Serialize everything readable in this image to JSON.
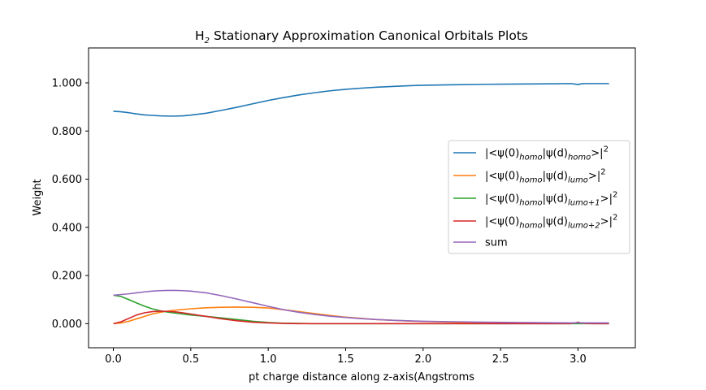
{
  "chart_data": {
    "type": "line",
    "title": {
      "prefix": "H",
      "sub": "2",
      "rest": " Stationary Approximation Canonical Orbitals Plots"
    },
    "xlabel": "pt charge distance along z-axis(Angstroms",
    "ylabel": "Weight",
    "xlim": [
      -0.16,
      3.37
    ],
    "ylim": [
      -0.1,
      1.145
    ],
    "x_ticks": [
      0.0,
      0.5,
      1.0,
      1.5,
      2.0,
      2.5,
      3.0
    ],
    "x_tick_labels": [
      "0.0",
      "0.5",
      "1.0",
      "1.5",
      "2.0",
      "2.5",
      "3.0"
    ],
    "y_ticks": [
      0.0,
      0.2,
      0.4,
      0.6,
      0.8,
      1.0
    ],
    "y_tick_labels": [
      "0.000",
      "0.200",
      "0.400",
      "0.600",
      "0.800",
      "1.000"
    ],
    "grid": false,
    "legend_position": "center-right",
    "x": [
      0.0,
      0.05,
      0.1,
      0.15,
      0.2,
      0.25,
      0.3,
      0.35,
      0.4,
      0.45,
      0.5,
      0.6,
      0.7,
      0.8,
      0.9,
      1.0,
      1.1,
      1.2,
      1.3,
      1.4,
      1.5,
      1.6,
      1.7,
      1.8,
      1.9,
      2.0,
      2.2,
      2.4,
      2.6,
      2.8,
      2.95,
      2.98,
      3.0,
      3.02,
      3.05,
      3.1,
      3.2
    ],
    "series": [
      {
        "legend": {
          "psi0": "|<ψ(0)",
          "sub1": "homo",
          "mid": "|ψ(d)",
          "sub2": "homo",
          "end": ">|",
          "sup": "2"
        },
        "color": "#1f77b4",
        "values": [
          0.882,
          0.88,
          0.876,
          0.871,
          0.867,
          0.865,
          0.863,
          0.862,
          0.862,
          0.863,
          0.866,
          0.874,
          0.886,
          0.899,
          0.913,
          0.927,
          0.939,
          0.95,
          0.959,
          0.967,
          0.973,
          0.978,
          0.982,
          0.985,
          0.988,
          0.99,
          0.992,
          0.994,
          0.995,
          0.996,
          0.997,
          0.995,
          0.993,
          0.996,
          0.997,
          0.997,
          0.997
        ]
      },
      {
        "legend": {
          "psi0": "|<ψ(0)",
          "sub1": "homo",
          "mid": "|ψ(d)",
          "sub2": "lumo",
          "end": ">|",
          "sup": "2"
        },
        "color": "#ff7f0e",
        "values": [
          0.0,
          0.003,
          0.01,
          0.02,
          0.03,
          0.04,
          0.047,
          0.052,
          0.056,
          0.059,
          0.062,
          0.066,
          0.068,
          0.069,
          0.068,
          0.065,
          0.058,
          0.05,
          0.042,
          0.034,
          0.027,
          0.022,
          0.017,
          0.014,
          0.011,
          0.009,
          0.006,
          0.004,
          0.003,
          0.002,
          0.002,
          0.002,
          0.003,
          0.002,
          0.002,
          0.001,
          0.001
        ]
      },
      {
        "legend": {
          "psi0": "|<ψ(0)",
          "sub1": "homo",
          "mid": "|ψ(d)",
          "sub2": "lumo+1",
          "end": ">|",
          "sup": "2"
        },
        "color": "#2ca02c",
        "values": [
          0.118,
          0.113,
          0.1,
          0.086,
          0.073,
          0.062,
          0.054,
          0.048,
          0.044,
          0.04,
          0.036,
          0.03,
          0.024,
          0.017,
          0.01,
          0.005,
          0.002,
          0.001,
          0.0,
          0.0,
          0.0,
          0.0,
          0.0,
          0.0,
          0.0,
          0.0,
          0.0,
          0.0,
          0.0,
          0.0,
          0.0,
          0.0,
          0.0,
          0.0,
          0.0,
          0.0,
          0.0
        ]
      },
      {
        "legend": {
          "psi0": "|<ψ(0)",
          "sub1": "homo",
          "mid": "|ψ(d)",
          "sub2": "lumo+2",
          "end": ">|",
          "sup": "2"
        },
        "color": "#d62728",
        "values": [
          0.0,
          0.008,
          0.022,
          0.036,
          0.045,
          0.05,
          0.052,
          0.051,
          0.049,
          0.045,
          0.04,
          0.03,
          0.02,
          0.012,
          0.006,
          0.003,
          0.001,
          0.0,
          0.0,
          0.0,
          0.0,
          0.0,
          0.0,
          0.0,
          0.0,
          0.0,
          0.0,
          0.0,
          0.0,
          0.0,
          0.0,
          0.003,
          0.006,
          0.003,
          0.001,
          0.0,
          0.0
        ]
      },
      {
        "legend": {
          "psi0": "sum",
          "sub1": "",
          "mid": "",
          "sub2": "",
          "end": "",
          "sup": ""
        },
        "color": "#9467bd",
        "values": [
          0.118,
          0.121,
          0.124,
          0.128,
          0.132,
          0.135,
          0.137,
          0.138,
          0.138,
          0.137,
          0.135,
          0.128,
          0.116,
          0.102,
          0.087,
          0.072,
          0.058,
          0.047,
          0.038,
          0.031,
          0.026,
          0.021,
          0.017,
          0.014,
          0.012,
          0.01,
          0.008,
          0.006,
          0.005,
          0.004,
          0.003,
          0.003,
          0.004,
          0.003,
          0.003,
          0.003,
          0.003
        ]
      }
    ]
  }
}
